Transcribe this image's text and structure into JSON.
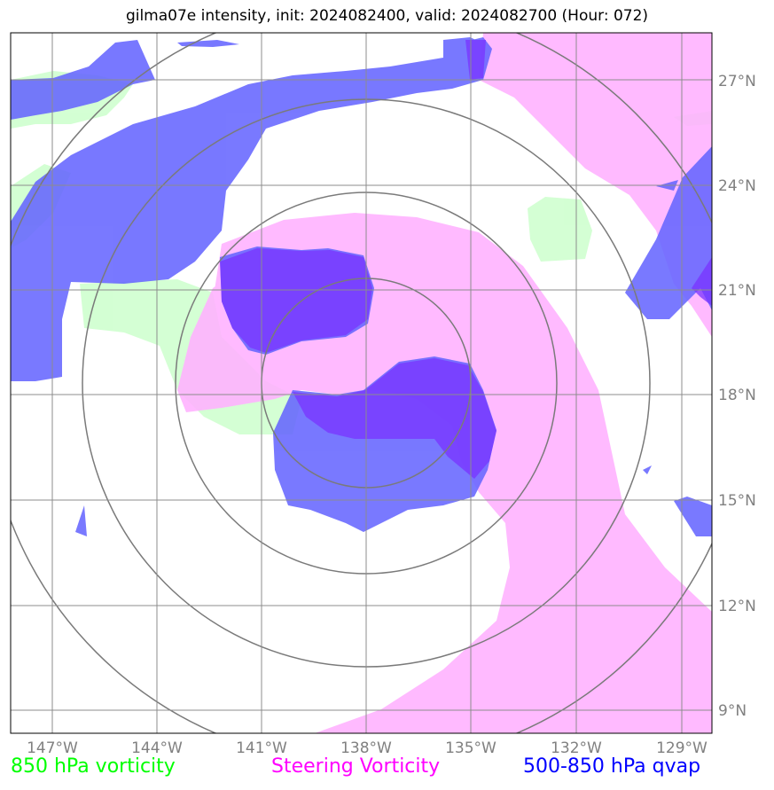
{
  "title": "gilma07e intensity, init: 2024082400, valid: 2024082700 (Hour: 072)",
  "lon_labels": [
    "147°W",
    "144°W",
    "141°W",
    "138°W",
    "135°W",
    "132°W",
    "129°W"
  ],
  "lat_labels": [
    "27°N",
    "24°N",
    "21°N",
    "18°N",
    "15°N",
    "12°N",
    "9°N"
  ],
  "legend": [
    {
      "label": "850 hPa vorticity",
      "color": "#00ff00"
    },
    {
      "label": "Steering Vorticity",
      "color": "#ff00ff"
    },
    {
      "label": "500-850 hPa qvap",
      "color": "#0000ff"
    }
  ],
  "colors": {
    "vorticity_850": "#ccffcc",
    "steering_vorticity": "#ffb3ff",
    "qvap": "#6666ff",
    "grid": "#8c8c8c",
    "range_rings": "#7a7a7a"
  }
}
